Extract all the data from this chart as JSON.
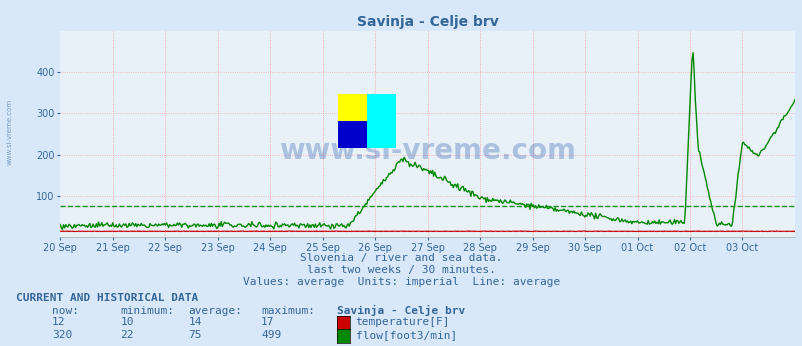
{
  "title": "Savinja - Celje brv",
  "subtitle_lines": [
    "Slovenia / river and sea data.",
    "last two weeks / 30 minutes.",
    "Values: average  Units: imperial  Line: average"
  ],
  "ylim": [
    0,
    500
  ],
  "yticks": [
    100,
    200,
    300,
    400
  ],
  "bg_color": "#d8e8f8",
  "plot_bg_color": "#e8f0f8",
  "watermark_text": "www.si-vreme.com",
  "watermark_color": "#2255aa",
  "watermark_alpha": 0.3,
  "x_labels": [
    "20 Sep",
    "21 Sep",
    "22 Sep",
    "23 Sep",
    "24 Sep",
    "25 Sep",
    "26 Sep",
    "27 Sep",
    "28 Sep",
    "29 Sep",
    "30 Sep",
    "01 Oct",
    "02 Oct",
    "03 Oct"
  ],
  "temp_color": "#cc0000",
  "flow_color": "#008800",
  "temp_avg_line": 14,
  "flow_avg_line": 75,
  "temp_now": 12,
  "temp_min": 10,
  "temp_avg": 14,
  "temp_max": 17,
  "flow_now": 320,
  "flow_min": 22,
  "flow_avg": 75,
  "flow_max": 499,
  "text_color": "#336699",
  "current_label": "CURRENT AND HISTORICAL DATA",
  "table_cols": [
    "now:",
    "minimum:",
    "average:",
    "maximum:",
    "Savinja - Celje brv"
  ],
  "temp_label": "temperature[F]",
  "flow_label": "flow[foot3/min]",
  "temp_box_color": "#cc0000",
  "flow_box_color": "#008800",
  "logo_yellow": "#ffff00",
  "logo_cyan": "#00ffff",
  "logo_blue": "#0000cc"
}
